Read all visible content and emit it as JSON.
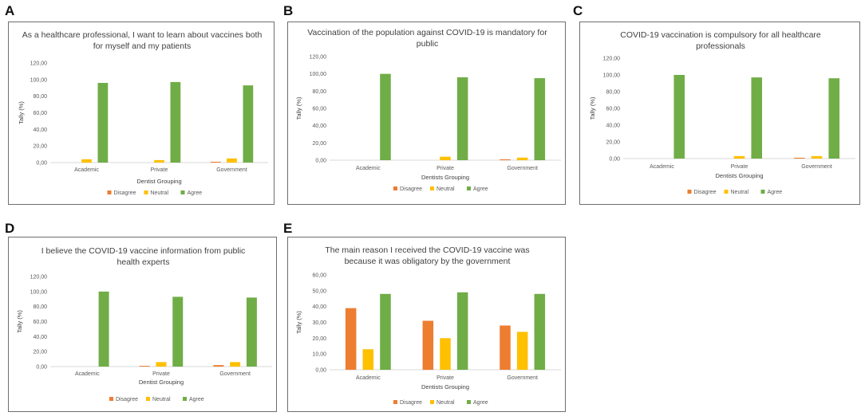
{
  "panels": [
    {
      "letter": "A"
    },
    {
      "letter": "B"
    },
    {
      "letter": "C"
    },
    {
      "letter": "D"
    },
    {
      "letter": "E"
    }
  ],
  "colors": {
    "Disagree": "#ed7d31",
    "Neutral": "#ffc000",
    "Agree": "#70ad47",
    "axis": "#d9d9d9"
  },
  "chart_data": [
    {
      "type": "bar",
      "title": [
        "As a healthcare professional, I want to learn about vaccines both",
        "for myself and my patients"
      ],
      "categories": [
        "Academic",
        "Private",
        "Government"
      ],
      "series": [
        {
          "name": "Disagree",
          "values": [
            0,
            0,
            1
          ]
        },
        {
          "name": "Neutral",
          "values": [
            4,
            3,
            5
          ]
        },
        {
          "name": "Agree",
          "values": [
            96,
            97,
            93
          ]
        }
      ],
      "ylabel": "Tally (%)",
      "xlabel": "Dentist Grouping",
      "ylim": [
        0,
        120
      ],
      "yticks": [
        "0,00",
        "20,00",
        "40,00",
        "60,00",
        "80,00",
        "100,00",
        "120,00"
      ]
    },
    {
      "type": "bar",
      "title": [
        "Vaccination of the population against COVID-19 is mandatory for",
        "public"
      ],
      "categories": [
        "Academic",
        "Private",
        "Government"
      ],
      "series": [
        {
          "name": "Disagree",
          "values": [
            0,
            0,
            1
          ]
        },
        {
          "name": "Neutral",
          "values": [
            0,
            4,
            3
          ]
        },
        {
          "name": "Agree",
          "values": [
            100,
            96,
            95
          ]
        }
      ],
      "ylabel": "Tally (%)",
      "xlabel": "Dentists Grouping",
      "ylim": [
        0,
        120
      ],
      "yticks": [
        "0,00",
        "20,00",
        "40,00",
        "60,00",
        "80,00",
        "100,00",
        "120,00"
      ]
    },
    {
      "type": "bar",
      "title": [
        "COVID-19 vaccination is compulsory for all healthcare",
        "professionals"
      ],
      "categories": [
        "Academic",
        "Private",
        "Government"
      ],
      "series": [
        {
          "name": "Disagree",
          "values": [
            0,
            0,
            1
          ]
        },
        {
          "name": "Neutral",
          "values": [
            0,
            3,
            3
          ]
        },
        {
          "name": "Agree",
          "values": [
            100,
            97,
            96
          ]
        }
      ],
      "ylabel": "Tally (%)",
      "xlabel": "Dentists Grouping",
      "ylim": [
        0,
        120
      ],
      "yticks": [
        "0,00",
        "20,00",
        "40,00",
        "60,00",
        "80,00",
        "100,00",
        "120,00"
      ]
    },
    {
      "type": "bar",
      "title": [
        "I believe the COVID-19 vaccine information from public",
        "health experts"
      ],
      "categories": [
        "Academic",
        "Private",
        "Government"
      ],
      "series": [
        {
          "name": "Disagree",
          "values": [
            0,
            1,
            2
          ]
        },
        {
          "name": "Neutral",
          "values": [
            0,
            6,
            6
          ]
        },
        {
          "name": "Agree",
          "values": [
            100,
            93,
            92
          ]
        }
      ],
      "ylabel": "Tally (%)",
      "xlabel": "Dentist Grouping",
      "ylim": [
        0,
        120
      ],
      "yticks": [
        "0,00",
        "20,00",
        "40,00",
        "60,00",
        "80,00",
        "100,00",
        "120,00"
      ]
    },
    {
      "type": "bar",
      "title": [
        "The main reason I received the COVID-19 vaccine was",
        "because it was obligatory by the government"
      ],
      "categories": [
        "Academic",
        "Private",
        "Government"
      ],
      "series": [
        {
          "name": "Disagree",
          "values": [
            39,
            31,
            28
          ]
        },
        {
          "name": "Neutral",
          "values": [
            13,
            20,
            24
          ]
        },
        {
          "name": "Agree",
          "values": [
            48,
            49,
            48
          ]
        }
      ],
      "ylabel": "Tally (%)",
      "xlabel": "Dentists Grouping",
      "ylim": [
        0,
        60
      ],
      "yticks": [
        "0,00",
        "10,00",
        "20,00",
        "30,00",
        "40,00",
        "50,00",
        "60,00"
      ]
    }
  ]
}
